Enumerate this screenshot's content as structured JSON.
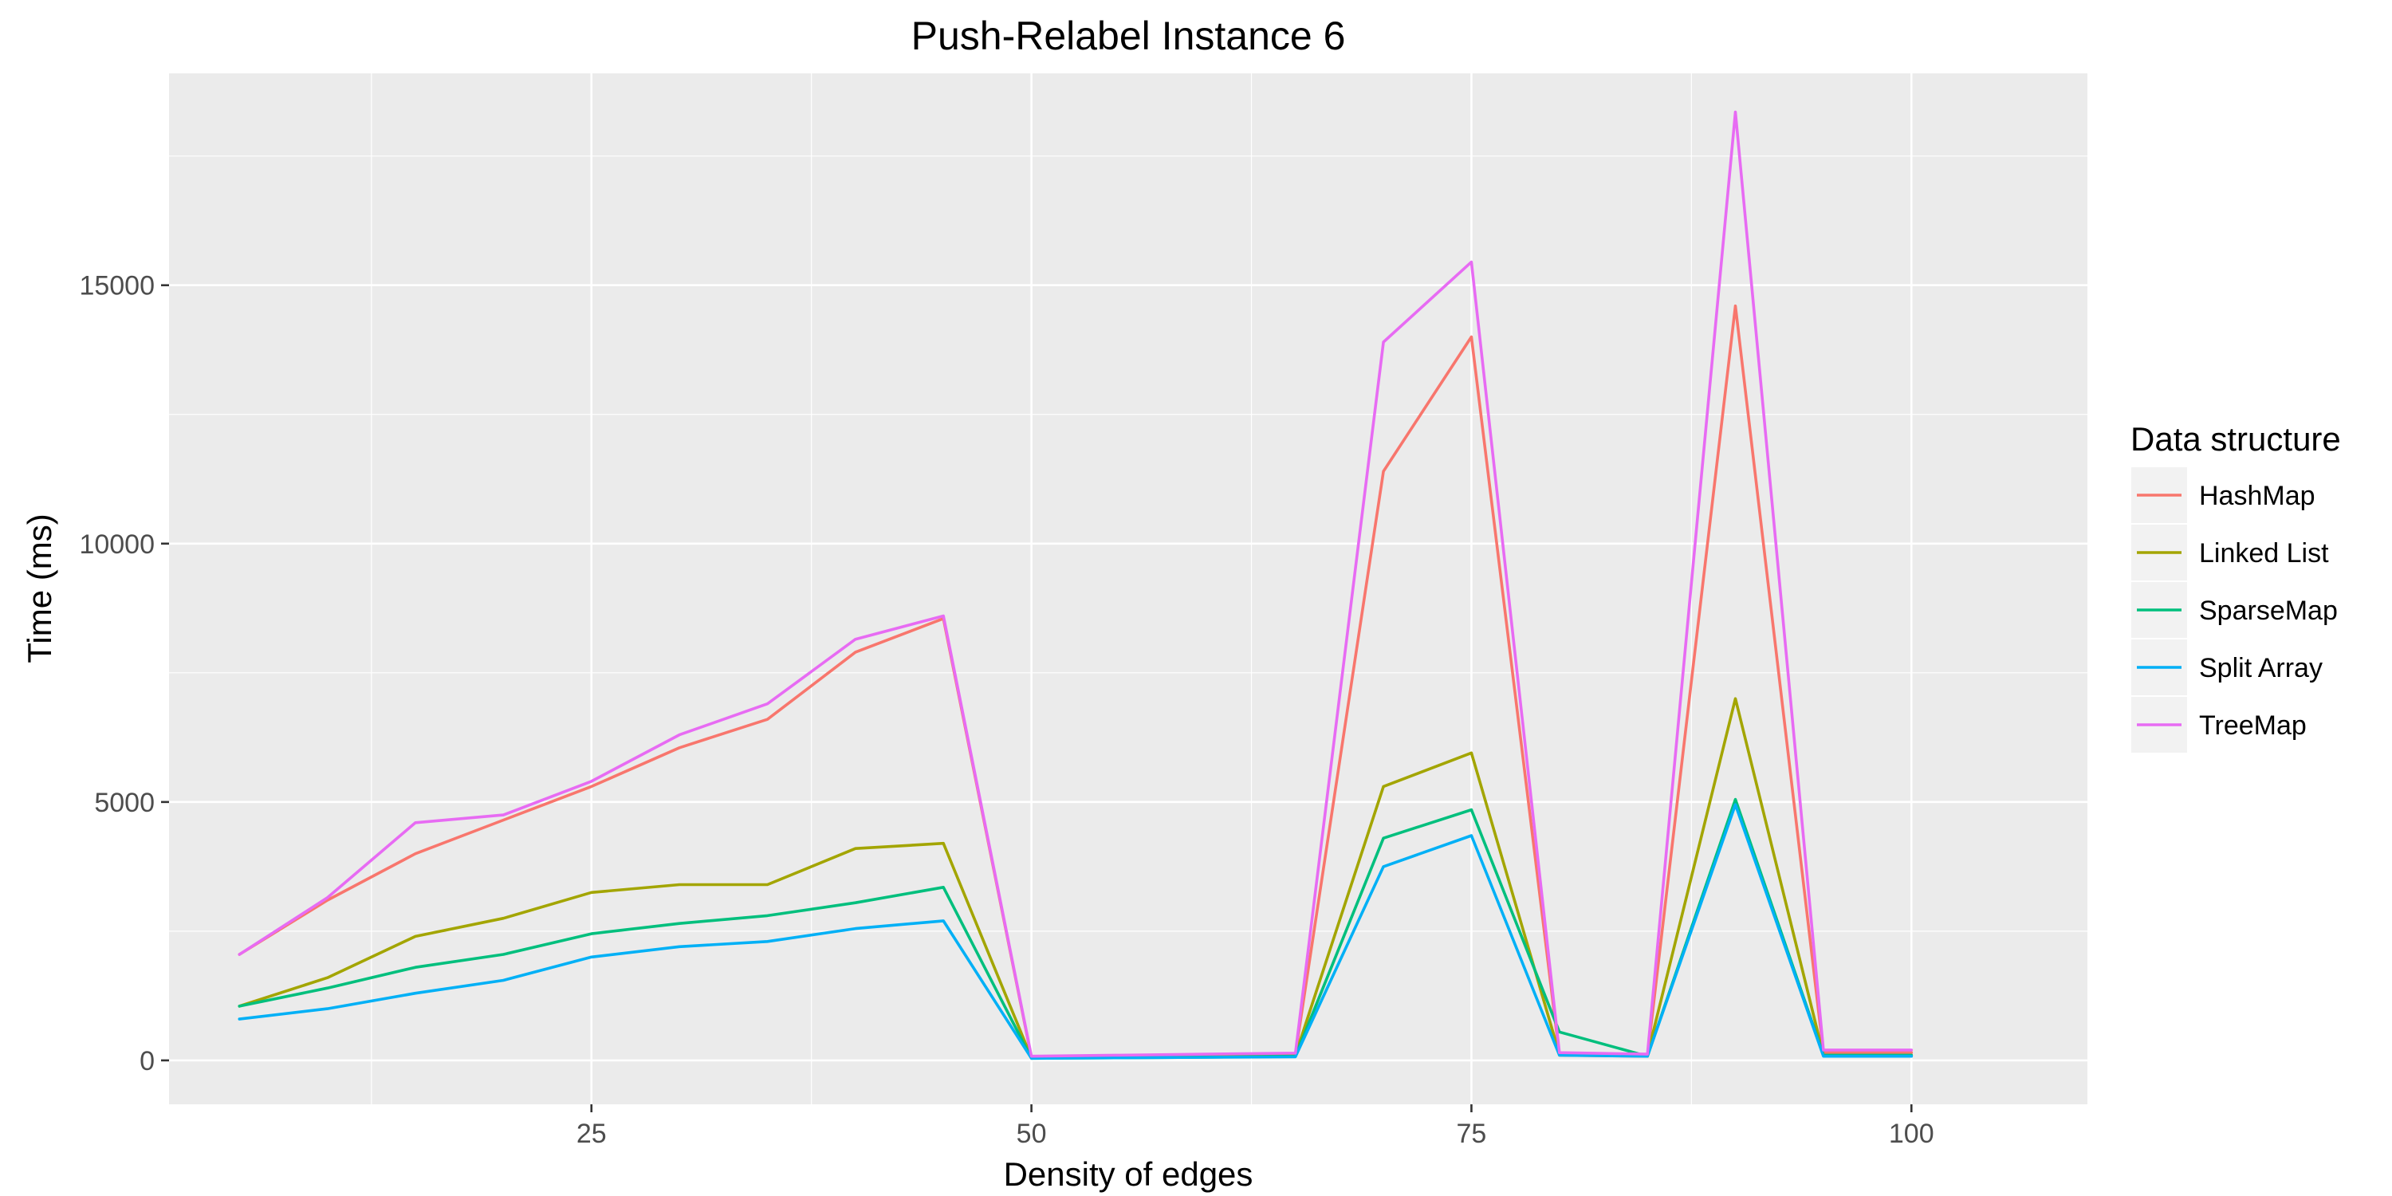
{
  "chart_data": {
    "type": "line",
    "title": "Push-Relabel Instance 6",
    "xlabel": "Density of edges",
    "ylabel": "Time (ms)",
    "xlim": [
      1,
      110
    ],
    "ylim": [
      -850,
      19100
    ],
    "x_ticks": [
      25,
      50,
      75,
      100
    ],
    "x_minor_ticks": [
      12.5,
      37.5,
      62.5,
      87.5
    ],
    "y_ticks": [
      0,
      5000,
      10000,
      15000
    ],
    "y_minor_ticks": [
      2500,
      7500,
      12500,
      17500
    ],
    "x_tick_labels": [
      "25",
      "50",
      "75",
      "100"
    ],
    "y_tick_labels": [
      "0",
      "5000",
      "10000",
      "15000"
    ],
    "legend": {
      "title": "Data structure",
      "position": "right"
    },
    "x": [
      5,
      10,
      15,
      20,
      25,
      30,
      35,
      40,
      45,
      50,
      55,
      60,
      65,
      70,
      75,
      80,
      85,
      90,
      95,
      100
    ],
    "series": [
      {
        "name": "HashMap",
        "color": "#F8766D",
        "values": [
          2050,
          3100,
          4000,
          4650,
          5300,
          6050,
          6600,
          7900,
          8550,
          60,
          80,
          100,
          120,
          11400,
          14000,
          100,
          80,
          14600,
          150,
          150
        ]
      },
      {
        "name": "Linked List",
        "color": "#A3A500",
        "values": [
          1050,
          1600,
          2400,
          2750,
          3250,
          3400,
          3400,
          4100,
          4200,
          50,
          60,
          80,
          100,
          5300,
          5950,
          120,
          100,
          7000,
          100,
          100
        ]
      },
      {
        "name": "SparseMap",
        "color": "#00BF7D",
        "values": [
          1050,
          1400,
          1800,
          2050,
          2450,
          2650,
          2800,
          3050,
          3350,
          40,
          50,
          60,
          80,
          4300,
          4850,
          550,
          80,
          5050,
          100,
          100
        ]
      },
      {
        "name": "Split Array",
        "color": "#00B0F6",
        "values": [
          800,
          1000,
          1300,
          1550,
          2000,
          2200,
          2300,
          2550,
          2700,
          40,
          50,
          60,
          70,
          3750,
          4350,
          100,
          80,
          4950,
          80,
          80
        ]
      },
      {
        "name": "TreeMap",
        "color": "#E76BF3",
        "values": [
          2050,
          3150,
          4600,
          4750,
          5400,
          6300,
          6900,
          8150,
          8600,
          80,
          100,
          120,
          140,
          13900,
          15450,
          150,
          120,
          18350,
          200,
          200
        ]
      }
    ]
  }
}
